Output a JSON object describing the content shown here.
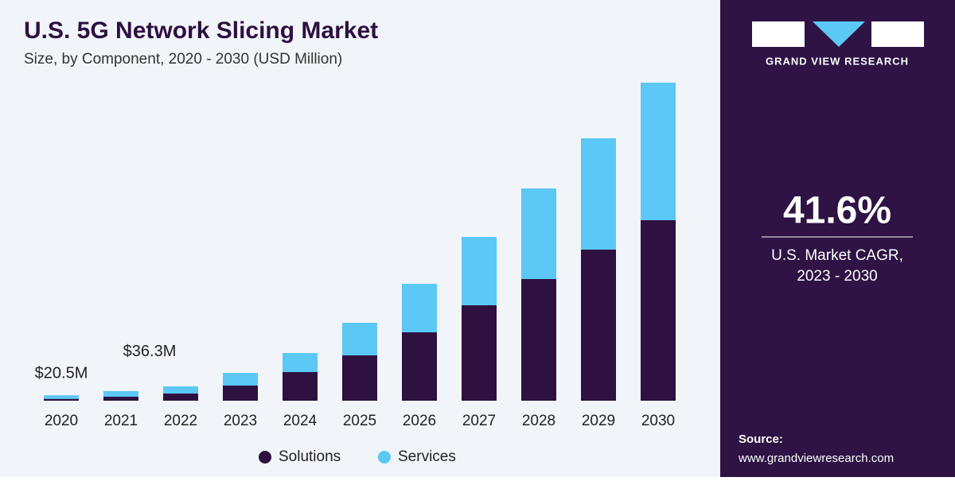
{
  "chart_data": {
    "type": "stacked_bar",
    "title": "U.S. 5G Network Slicing Market",
    "subtitle": "Size, by Component, 2020 - 2030 (USD Million)",
    "categories": [
      "2020",
      "2021",
      "2022",
      "2023",
      "2024",
      "2025",
      "2026",
      "2027",
      "2028",
      "2029",
      "2030"
    ],
    "series": [
      {
        "name": "Solutions",
        "color": "#2e1041",
        "values": [
          7,
          15,
          27,
          57,
          108,
          171,
          258,
          360,
          459,
          570,
          681
        ]
      },
      {
        "name": "Services",
        "color": "#5bc8f5",
        "values": [
          13.5,
          21.3,
          27,
          48,
          72,
          123,
          183,
          258,
          342,
          420,
          519
        ]
      }
    ],
    "annotations": [
      "$20.5M",
      "$36.3M"
    ]
  },
  "sidebar": {
    "brand": "GRAND VIEW RESEARCH",
    "cagr": "41.6%",
    "cagr_label": [
      "U.S. Market CAGR,",
      "2023 - 2030"
    ],
    "source_label": "Source:",
    "source_url": "www.grandviewresearch.com"
  }
}
